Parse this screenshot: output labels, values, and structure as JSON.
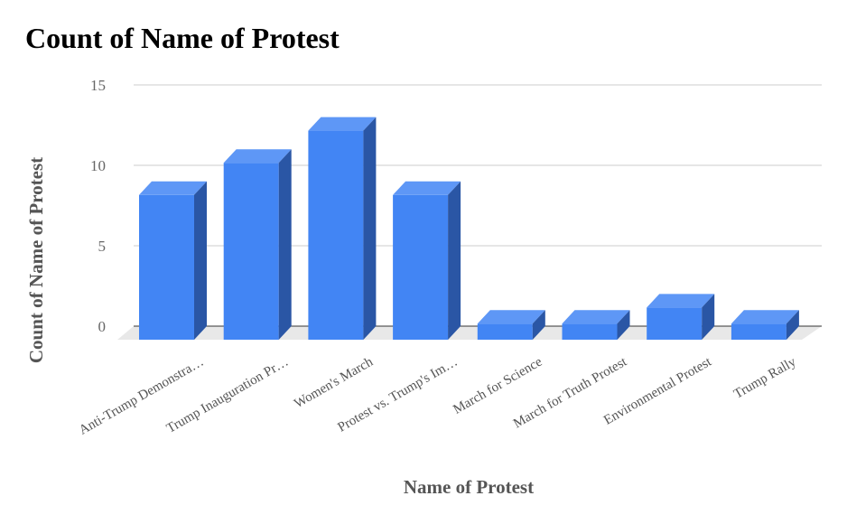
{
  "chart_data": {
    "type": "bar",
    "style": "3d-column",
    "title": "Count of Name of Protest",
    "xlabel": "Name of Protest",
    "ylabel": "Count of Name of Protest",
    "categories": [
      "Anti-Trump Demonstra…",
      "Trump Inauguration Pr…",
      "Women's March",
      "Protest vs. Trump's Im…",
      "March for Science",
      "March for Truth Protest",
      "Environmental Protest",
      "Trump Rally"
    ],
    "values": [
      9,
      11,
      13,
      9,
      1,
      1,
      2,
      1
    ],
    "ylim": [
      0,
      15
    ],
    "yticks": [
      0,
      5,
      10,
      15
    ],
    "grid": true,
    "legend": "none",
    "colors": {
      "front": "#4285f4",
      "top": "#5e97f6",
      "side": "#2a56a5",
      "floor": "#e8e8e8",
      "grid": "#cccccc",
      "baseline": "#333333"
    }
  }
}
